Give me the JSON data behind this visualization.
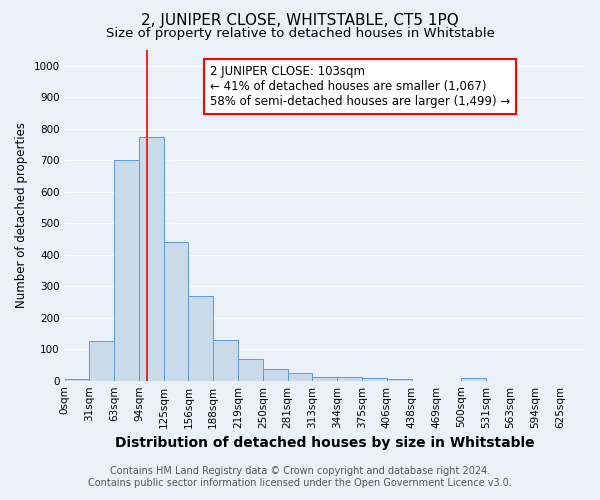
{
  "title": "2, JUNIPER CLOSE, WHITSTABLE, CT5 1PQ",
  "subtitle": "Size of property relative to detached houses in Whitstable",
  "xlabel": "Distribution of detached houses by size in Whitstable",
  "ylabel": "Number of detached properties",
  "footnote1": "Contains HM Land Registry data © Crown copyright and database right 2024.",
  "footnote2": "Contains public sector information licensed under the Open Government Licence v3.0.",
  "bin_labels": [
    "0sqm",
    "31sqm",
    "63sqm",
    "94sqm",
    "125sqm",
    "156sqm",
    "188sqm",
    "219sqm",
    "250sqm",
    "281sqm",
    "313sqm",
    "344sqm",
    "375sqm",
    "406sqm",
    "438sqm",
    "469sqm",
    "500sqm",
    "531sqm",
    "563sqm",
    "594sqm",
    "625sqm"
  ],
  "bar_values": [
    5,
    125,
    700,
    775,
    440,
    270,
    130,
    68,
    38,
    25,
    12,
    12,
    10,
    5,
    0,
    0,
    8,
    0,
    0,
    0,
    0
  ],
  "bar_color": "#c9daea",
  "bar_edge_color": "#5b9bd5",
  "red_line_x": 103,
  "bin_width": 31,
  "annotation_text": "2 JUNIPER CLOSE: 103sqm\n← 41% of detached houses are smaller (1,067)\n58% of semi-detached houses are larger (1,499) →",
  "annotation_box_color": "white",
  "annotation_box_edge_color": "red",
  "ylim": [
    0,
    1050
  ],
  "yticks": [
    0,
    100,
    200,
    300,
    400,
    500,
    600,
    700,
    800,
    900,
    1000
  ],
  "background_color": "#eaf1f8",
  "grid_color": "white",
  "title_fontsize": 11,
  "subtitle_fontsize": 9.5,
  "xlabel_fontsize": 10,
  "ylabel_fontsize": 8.5,
  "tick_fontsize": 7.5,
  "annotation_fontsize": 8.5,
  "footnote_fontsize": 7
}
